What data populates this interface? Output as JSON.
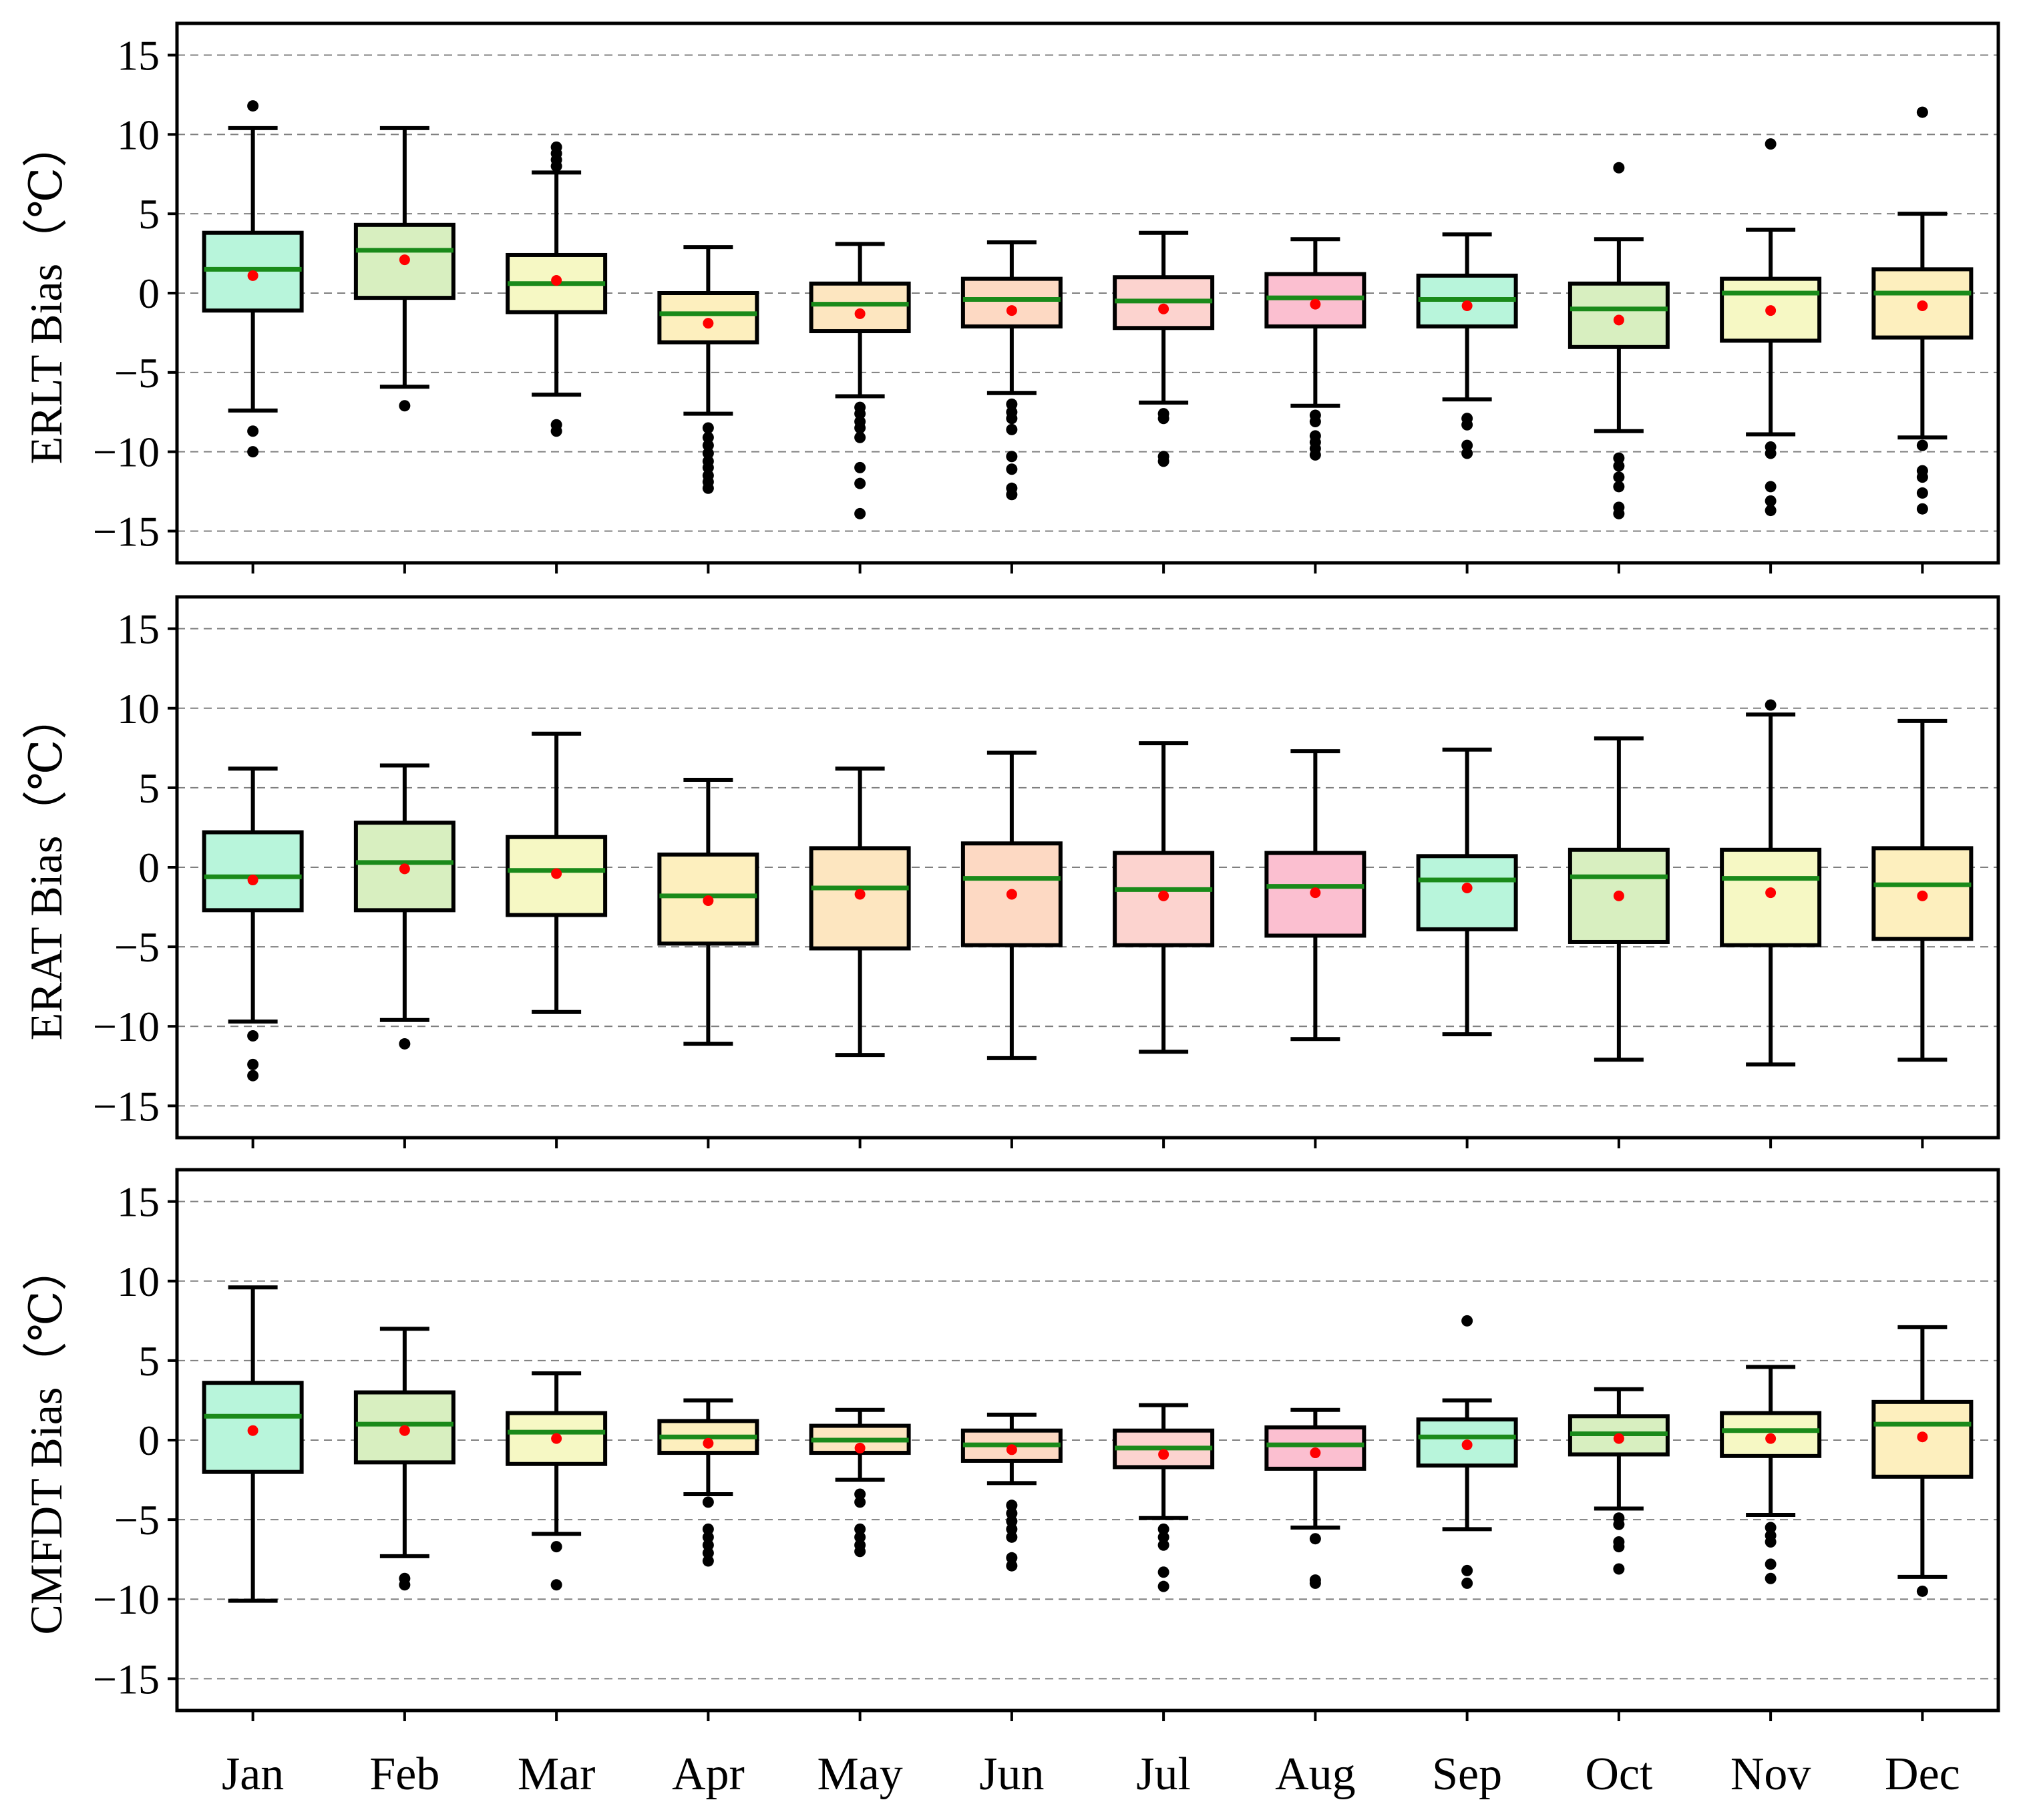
{
  "chart_data": {
    "type": "box",
    "months": [
      "Jan",
      "Feb",
      "Mar",
      "Apr",
      "May",
      "Jun",
      "Jul",
      "Aug",
      "Sep",
      "Oct",
      "Nov",
      "Dec"
    ],
    "box_colors": [
      "#b8f5db",
      "#d8efc0",
      "#f6f8c4",
      "#fdefbe",
      "#fde6c0",
      "#fdd9c3",
      "#fcd3cf",
      "#fbbfd0",
      "#b8f5db",
      "#d8efc0",
      "#f6f8c4",
      "#fdefbe"
    ],
    "median_color": "#1a8a1a",
    "mean_color": "#ff0000",
    "flier_color": "#000000",
    "ylim": [
      -17,
      17
    ],
    "yticks": [
      -15,
      -10,
      -5,
      0,
      5,
      10,
      15
    ],
    "grid": "horizontal dashed",
    "panels": [
      {
        "ylabel": "ERLT Bias（℃）",
        "series": [
          {
            "month": "Jan",
            "whislo": -7.4,
            "q1": -1.1,
            "med": 1.5,
            "q3": 3.8,
            "whishi": 10.4,
            "mean": 1.1,
            "fliers": [
              11.8,
              -8.7,
              -10.0
            ]
          },
          {
            "month": "Feb",
            "whislo": -5.9,
            "q1": -0.3,
            "med": 2.7,
            "q3": 4.3,
            "whishi": 10.4,
            "mean": 2.1,
            "fliers": [
              -7.1
            ]
          },
          {
            "month": "Mar",
            "whislo": -6.4,
            "q1": -1.2,
            "med": 0.6,
            "q3": 2.4,
            "whishi": 7.6,
            "mean": 0.8,
            "fliers": [
              9.2,
              8.8,
              8.4,
              8.0,
              -8.3,
              -8.7
            ]
          },
          {
            "month": "Apr",
            "whislo": -7.6,
            "q1": -3.1,
            "med": -1.3,
            "q3": 0.0,
            "whishi": 2.9,
            "mean": -1.9,
            "fliers": [
              -8.5,
              -9.1,
              -9.6,
              -10.1,
              -10.6,
              -11.0,
              -11.5,
              -11.9,
              -12.3
            ]
          },
          {
            "month": "May",
            "whislo": -6.5,
            "q1": -2.4,
            "med": -0.7,
            "q3": 0.6,
            "whishi": 3.1,
            "mean": -1.3,
            "fliers": [
              -7.2,
              -7.6,
              -8.1,
              -8.5,
              -9.1,
              -11.0,
              -12.0,
              -13.9
            ]
          },
          {
            "month": "Jun",
            "whislo": -6.3,
            "q1": -2.1,
            "med": -0.4,
            "q3": 0.9,
            "whishi": 3.2,
            "mean": -1.1,
            "fliers": [
              -7.0,
              -7.5,
              -7.9,
              -8.6,
              -10.3,
              -11.1,
              -12.3,
              -12.7
            ]
          },
          {
            "month": "Jul",
            "whislo": -6.9,
            "q1": -2.2,
            "med": -0.5,
            "q3": 1.0,
            "whishi": 3.8,
            "mean": -1.0,
            "fliers": [
              -7.6,
              -7.9,
              -10.3,
              -10.6
            ]
          },
          {
            "month": "Aug",
            "whislo": -7.1,
            "q1": -2.1,
            "med": -0.3,
            "q3": 1.2,
            "whishi": 3.4,
            "mean": -0.7,
            "fliers": [
              -7.7,
              -8.1,
              -9.0,
              -9.4,
              -9.8,
              -10.2
            ]
          },
          {
            "month": "Sep",
            "whislo": -6.7,
            "q1": -2.1,
            "med": -0.4,
            "q3": 1.1,
            "whishi": 3.7,
            "mean": -0.8,
            "fliers": [
              -7.9,
              -8.3,
              -9.6,
              -10.1
            ]
          },
          {
            "month": "Oct",
            "whislo": -8.7,
            "q1": -3.4,
            "med": -1.0,
            "q3": 0.6,
            "whishi": 3.4,
            "mean": -1.7,
            "fliers": [
              7.9,
              -10.4,
              -10.9,
              -11.6,
              -12.2,
              -13.5,
              -13.9
            ]
          },
          {
            "month": "Nov",
            "whislo": -8.9,
            "q1": -3.0,
            "med": 0.0,
            "q3": 0.9,
            "whishi": 4.0,
            "mean": -1.1,
            "fliers": [
              9.4,
              -9.7,
              -10.1,
              -12.2,
              -13.1,
              -13.7
            ]
          },
          {
            "month": "Dec",
            "whislo": -9.1,
            "q1": -2.8,
            "med": 0.0,
            "q3": 1.5,
            "whishi": 5.0,
            "mean": -0.8,
            "fliers": [
              11.4,
              -9.6,
              -11.2,
              -11.6,
              -12.6,
              -13.6
            ]
          }
        ]
      },
      {
        "ylabel": "ERAT Bias（℃）",
        "series": [
          {
            "month": "Jan",
            "whislo": -9.7,
            "q1": -2.7,
            "med": -0.6,
            "q3": 2.2,
            "whishi": 6.2,
            "mean": -0.8,
            "fliers": [
              -10.6,
              -12.4,
              -13.1
            ]
          },
          {
            "month": "Feb",
            "whislo": -9.6,
            "q1": -2.7,
            "med": 0.3,
            "q3": 2.8,
            "whishi": 6.4,
            "mean": -0.1,
            "fliers": [
              -11.1
            ]
          },
          {
            "month": "Mar",
            "whislo": -9.1,
            "q1": -3.0,
            "med": -0.2,
            "q3": 1.9,
            "whishi": 8.4,
            "mean": -0.4,
            "fliers": []
          },
          {
            "month": "Apr",
            "whislo": -11.1,
            "q1": -4.8,
            "med": -1.8,
            "q3": 0.8,
            "whishi": 5.5,
            "mean": -2.1,
            "fliers": []
          },
          {
            "month": "May",
            "whislo": -11.8,
            "q1": -5.1,
            "med": -1.3,
            "q3": 1.2,
            "whishi": 6.2,
            "mean": -1.7,
            "fliers": []
          },
          {
            "month": "Jun",
            "whislo": -12.0,
            "q1": -4.9,
            "med": -0.7,
            "q3": 1.5,
            "whishi": 7.2,
            "mean": -1.7,
            "fliers": []
          },
          {
            "month": "Jul",
            "whislo": -11.6,
            "q1": -4.9,
            "med": -1.4,
            "q3": 0.9,
            "whishi": 7.8,
            "mean": -1.8,
            "fliers": []
          },
          {
            "month": "Aug",
            "whislo": -10.8,
            "q1": -4.3,
            "med": -1.2,
            "q3": 0.9,
            "whishi": 7.3,
            "mean": -1.6,
            "fliers": []
          },
          {
            "month": "Sep",
            "whislo": -10.5,
            "q1": -3.9,
            "med": -0.8,
            "q3": 0.7,
            "whishi": 7.4,
            "mean": -1.3,
            "fliers": []
          },
          {
            "month": "Oct",
            "whislo": -12.1,
            "q1": -4.7,
            "med": -0.6,
            "q3": 1.1,
            "whishi": 8.1,
            "mean": -1.8,
            "fliers": []
          },
          {
            "month": "Nov",
            "whislo": -12.4,
            "q1": -4.9,
            "med": -0.7,
            "q3": 1.1,
            "whishi": 9.6,
            "mean": -1.6,
            "fliers": [
              10.2
            ]
          },
          {
            "month": "Dec",
            "whislo": -12.1,
            "q1": -4.5,
            "med": -1.1,
            "q3": 1.2,
            "whishi": 9.2,
            "mean": -1.8,
            "fliers": []
          }
        ]
      },
      {
        "ylabel": "CMFDT Bias（℃）",
        "series": [
          {
            "month": "Jan",
            "whislo": -10.1,
            "q1": -2.0,
            "med": 1.5,
            "q3": 3.6,
            "whishi": 9.6,
            "mean": 0.6,
            "fliers": []
          },
          {
            "month": "Feb",
            "whislo": -7.3,
            "q1": -1.4,
            "med": 1.0,
            "q3": 3.0,
            "whishi": 7.0,
            "mean": 0.6,
            "fliers": [
              -8.7,
              -9.1
            ]
          },
          {
            "month": "Mar",
            "whislo": -5.9,
            "q1": -1.5,
            "med": 0.5,
            "q3": 1.7,
            "whishi": 4.2,
            "mean": 0.1,
            "fliers": [
              -6.7,
              -9.1
            ]
          },
          {
            "month": "Apr",
            "whislo": -3.4,
            "q1": -0.8,
            "med": 0.2,
            "q3": 1.2,
            "whishi": 2.5,
            "mean": -0.2,
            "fliers": [
              -3.9,
              -5.6,
              -6.1,
              -6.6,
              -7.1,
              -7.6
            ]
          },
          {
            "month": "May",
            "whislo": -2.5,
            "q1": -0.8,
            "med": 0.0,
            "q3": 0.9,
            "whishi": 1.9,
            "mean": -0.5,
            "fliers": [
              -3.4,
              -3.9,
              -5.6,
              -6.1,
              -6.6,
              -7.0
            ]
          },
          {
            "month": "Jun",
            "whislo": -2.7,
            "q1": -1.3,
            "med": -0.3,
            "q3": 0.6,
            "whishi": 1.6,
            "mean": -0.6,
            "fliers": [
              -4.1,
              -4.6,
              -5.1,
              -5.6,
              -6.1,
              -7.4,
              -7.9
            ]
          },
          {
            "month": "Jul",
            "whislo": -4.9,
            "q1": -1.7,
            "med": -0.5,
            "q3": 0.6,
            "whishi": 2.2,
            "mean": -0.9,
            "fliers": [
              -5.6,
              -6.1,
              -6.6,
              -8.3,
              -9.2
            ]
          },
          {
            "month": "Aug",
            "whislo": -5.5,
            "q1": -1.8,
            "med": -0.3,
            "q3": 0.8,
            "whishi": 1.9,
            "mean": -0.8,
            "fliers": [
              -6.2,
              -8.8,
              -9.0
            ]
          },
          {
            "month": "Sep",
            "whislo": -5.6,
            "q1": -1.6,
            "med": 0.2,
            "q3": 1.3,
            "whishi": 2.5,
            "mean": -0.3,
            "fliers": [
              7.5,
              -8.2,
              -9.0
            ]
          },
          {
            "month": "Oct",
            "whislo": -4.3,
            "q1": -0.9,
            "med": 0.4,
            "q3": 1.5,
            "whishi": 3.2,
            "mean": 0.1,
            "fliers": [
              -4.9,
              -5.3,
              -6.4,
              -6.7,
              -8.1
            ]
          },
          {
            "month": "Nov",
            "whislo": -4.7,
            "q1": -1.0,
            "med": 0.6,
            "q3": 1.7,
            "whishi": 4.6,
            "mean": 0.1,
            "fliers": [
              -5.5,
              -6.0,
              -6.4,
              -7.8,
              -8.7
            ]
          },
          {
            "month": "Dec",
            "whislo": -8.6,
            "q1": -2.3,
            "med": 1.0,
            "q3": 2.4,
            "whishi": 7.1,
            "mean": 0.2,
            "fliers": [
              -9.5
            ]
          }
        ]
      }
    ]
  }
}
